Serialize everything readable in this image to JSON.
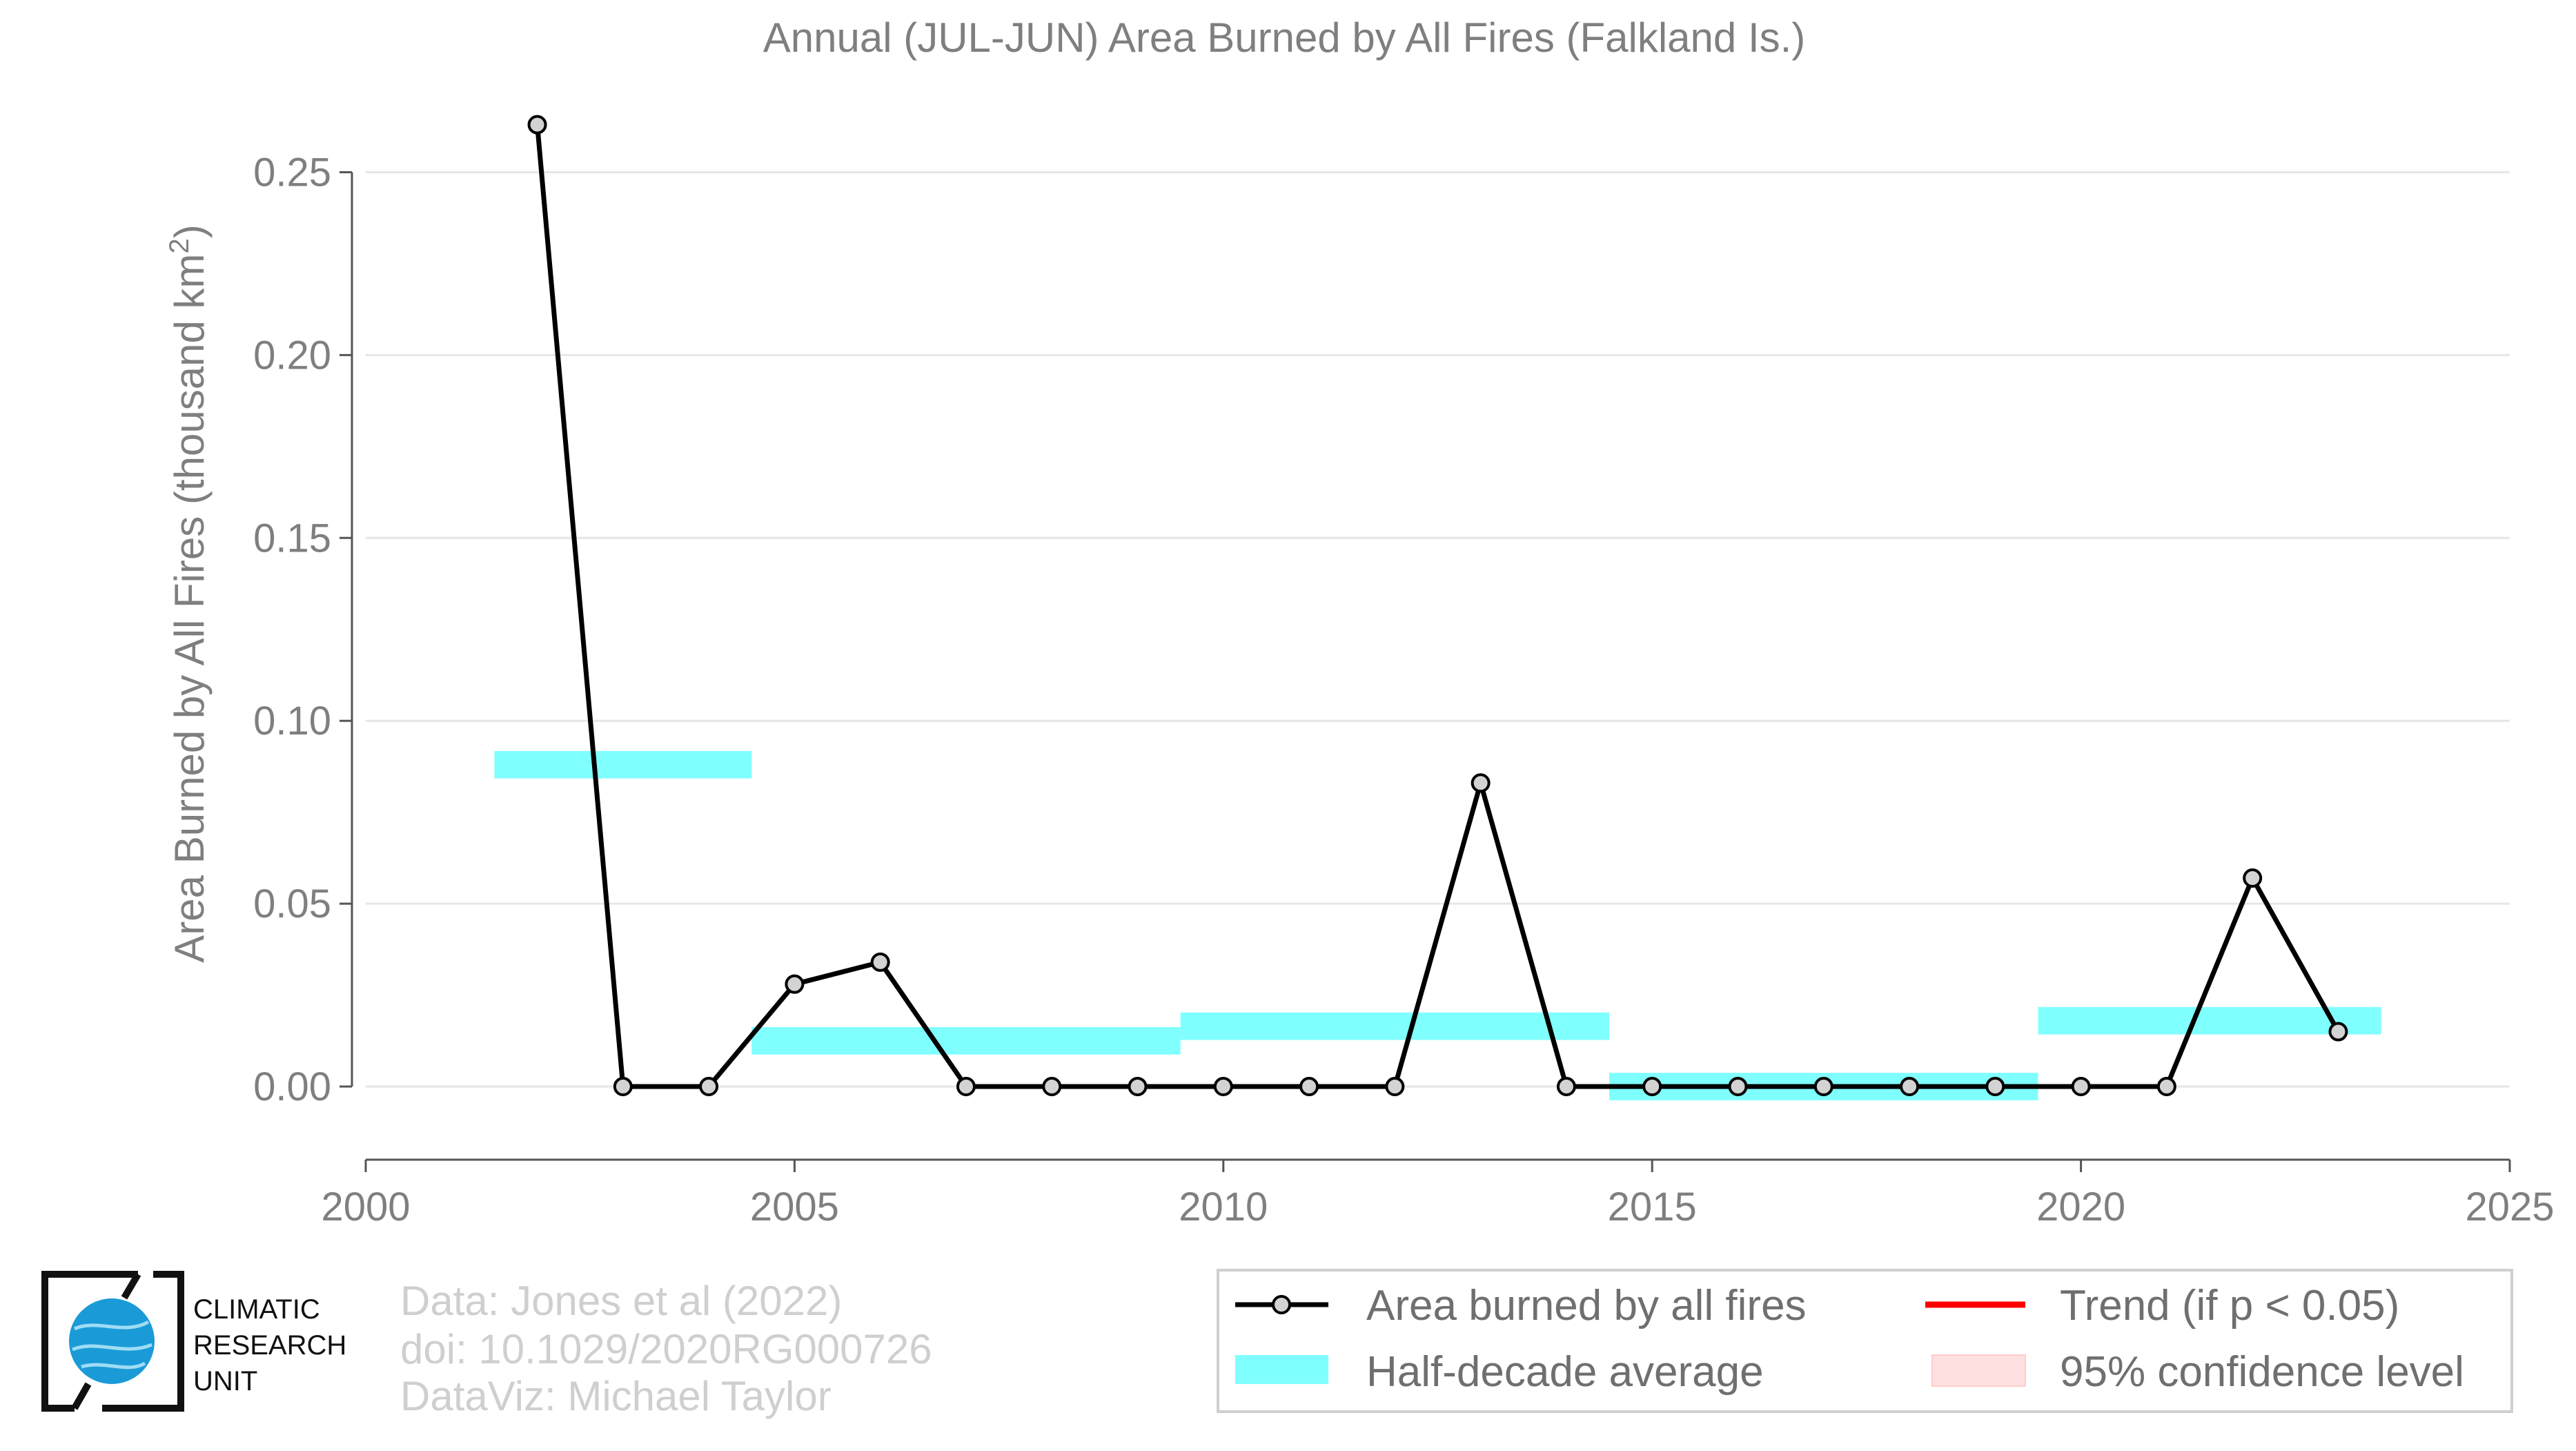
{
  "chart_data": {
    "type": "line",
    "title": "Annual (JUL-JUN) Area Burned by All Fires (Falkland Is.)",
    "xlabel": "",
    "ylabel_prefix": "Area Burned by All Fires (thousand km",
    "ylabel_sup": "2",
    "ylabel_suffix": ")",
    "xlim": [
      2000,
      2025
    ],
    "ylim": [
      -0.02,
      0.265
    ],
    "xticks": [
      2000,
      2005,
      2010,
      2015,
      2020,
      2025
    ],
    "yticks": [
      0.0,
      0.05,
      0.1,
      0.15,
      0.2,
      0.25
    ],
    "ytick_labels": [
      "0.00",
      "0.05",
      "0.10",
      "0.15",
      "0.20",
      "0.25"
    ],
    "grid": "horizontal",
    "series": [
      {
        "name": "Area burned by all fires",
        "color": "#000000",
        "marker_fill": "#d3d3d3",
        "x": [
          2002,
          2003,
          2004,
          2005,
          2006,
          2007,
          2008,
          2009,
          2010,
          2011,
          2012,
          2013,
          2014,
          2015,
          2016,
          2017,
          2018,
          2019,
          2020,
          2021,
          2022,
          2023
        ],
        "y": [
          0.263,
          0.0,
          0.0,
          0.028,
          0.034,
          0.0,
          0.0,
          0.0,
          0.0,
          0.0,
          0.0,
          0.083,
          0.0,
          0.0,
          0.0,
          0.0,
          0.0,
          0.0,
          0.0,
          0.0,
          0.057,
          0.015
        ]
      }
    ],
    "half_decade_average": {
      "name": "Half-decade average",
      "color": "#80ffff",
      "segments": [
        {
          "x0": 2001.5,
          "x1": 2004.5,
          "y": 0.088
        },
        {
          "x0": 2004.5,
          "x1": 2009.5,
          "y": 0.0125
        },
        {
          "x0": 2009.5,
          "x1": 2014.5,
          "y": 0.0165
        },
        {
          "x0": 2014.5,
          "x1": 2019.5,
          "y": 0.0
        },
        {
          "x0": 2019.5,
          "x1": 2023.5,
          "y": 0.018
        }
      ]
    },
    "legend": {
      "placement": "bottom-right",
      "items": [
        {
          "label": "Area burned by all fires",
          "kind": "line-marker",
          "color": "#000000"
        },
        {
          "label": "Trend (if p < 0.05)",
          "kind": "line",
          "color": "#ff0000"
        },
        {
          "label": "Half-decade average",
          "kind": "band",
          "color": "#80ffff"
        },
        {
          "label": "95% confidence level",
          "kind": "band",
          "color": "#ffe0e0"
        }
      ]
    }
  },
  "credits": {
    "line1": "Data: Jones et al (2022)",
    "line2": "doi: 10.1029/2020RG000726",
    "line3": "DataViz: Michael Taylor"
  },
  "logo": {
    "line1": "CLIMATIC",
    "line2": "RESEARCH",
    "line3": "UNIT",
    "globe_color": "#1a9bd7"
  }
}
